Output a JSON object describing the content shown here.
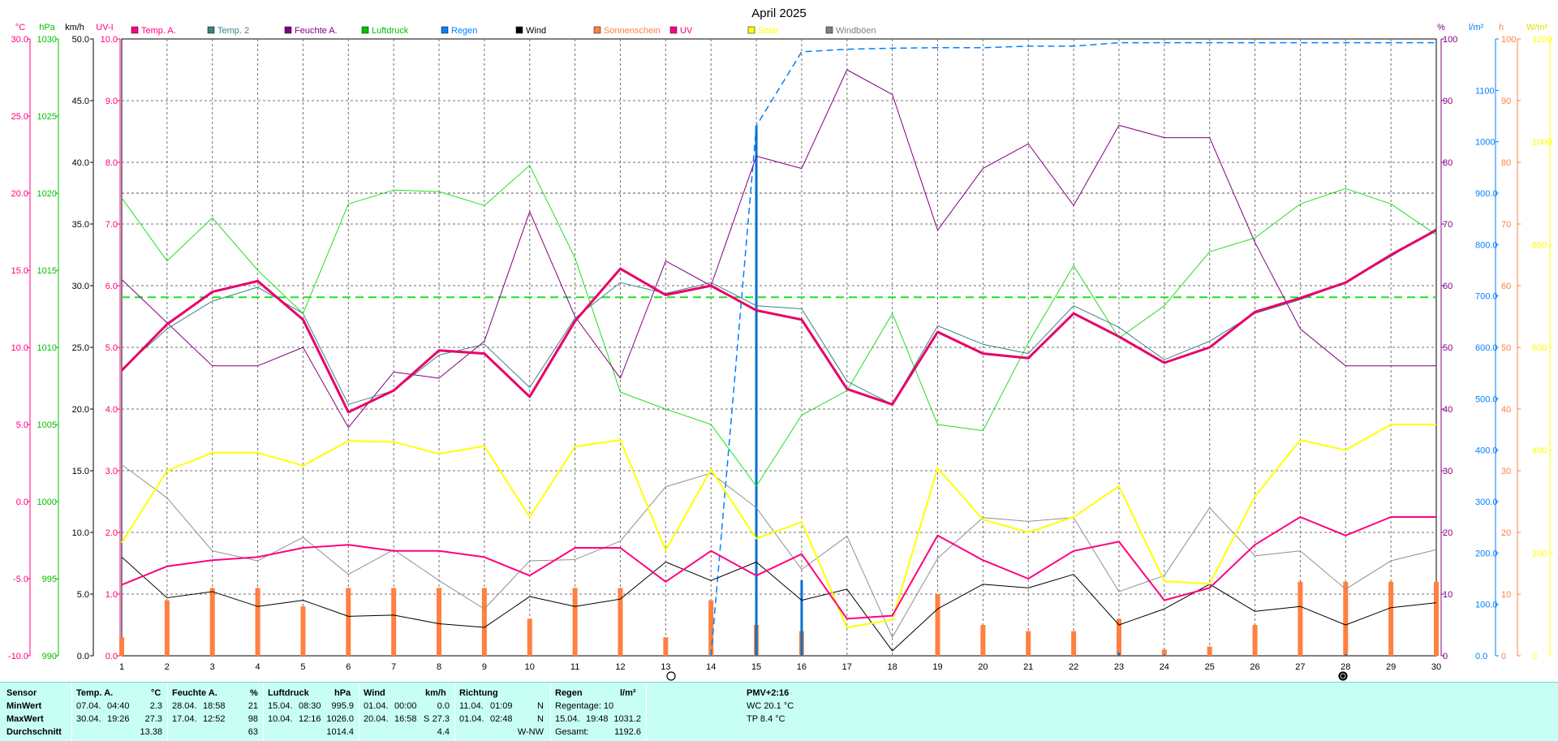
{
  "chart_data": {
    "type": "line",
    "title": "April 2025",
    "x": [
      1,
      2,
      3,
      4,
      5,
      6,
      7,
      8,
      9,
      10,
      11,
      12,
      13,
      14,
      15,
      16,
      17,
      18,
      19,
      20,
      21,
      22,
      23,
      24,
      25,
      26,
      27,
      28,
      29,
      30
    ],
    "axes": {
      "temp": {
        "unit": "°C",
        "color": "#ff0080",
        "range": [
          -10,
          30
        ],
        "ticks": [
          "30.0",
          "25.0",
          "20.0",
          "15.0",
          "10.0",
          "5.0",
          "0.0",
          "-5.0",
          "-10.0"
        ]
      },
      "press": {
        "unit": "hPa",
        "color": "#00c000",
        "range": [
          990,
          1030
        ],
        "ticks": [
          "1030",
          "1025",
          "1020",
          "1015",
          "1010",
          "1005",
          "1000",
          "995",
          "990"
        ]
      },
      "wind": {
        "unit": "km/h",
        "color": "#000000",
        "range": [
          0,
          50
        ],
        "ticks": [
          "50.0",
          "45.0",
          "40.0",
          "35.0",
          "30.0",
          "25.0",
          "20.0",
          "15.0",
          "10.0",
          "5.0",
          "0.0"
        ]
      },
      "uv": {
        "unit": "UV-I",
        "color": "#ff0080",
        "range": [
          0,
          10
        ],
        "ticks": [
          "10.0",
          "9.0",
          "8.0",
          "7.0",
          "6.0",
          "5.0",
          "4.0",
          "3.0",
          "2.0",
          "1.0",
          "0.0"
        ]
      },
      "hum": {
        "unit": "%",
        "color": "#800080",
        "range": [
          0,
          100
        ],
        "ticks": [
          "100",
          "90",
          "80",
          "70",
          "60",
          "50",
          "40",
          "30",
          "20",
          "10",
          "0"
        ]
      },
      "rain": {
        "unit": "l/m²",
        "color": "#0080ff",
        "range": [
          0,
          1200
        ],
        "ticks": [
          "",
          "1100",
          "1000",
          "900.0",
          "800.0",
          "700.0",
          "600.0",
          "500.0",
          "400.0",
          "300.0",
          "200.0",
          "100.0",
          "0.0"
        ]
      },
      "sun": {
        "unit": "h",
        "color": "#ff8040",
        "range": [
          0,
          100
        ],
        "ticks": [
          "100",
          "90",
          "80",
          "70",
          "60",
          "50",
          "40",
          "30",
          "20",
          "10",
          "0"
        ]
      },
      "solar": {
        "unit": "W/m²",
        "color": "#ffff00",
        "range": [
          0,
          1200
        ],
        "ticks": [
          "1200",
          "1000",
          "800",
          "600",
          "400",
          "200",
          "0"
        ]
      }
    },
    "legend": [
      "Temp. A.",
      "Temp. 2",
      "Feuchte A.",
      "Luftdruck",
      "Regen",
      "Wind",
      "Sonnenschein",
      "UV",
      "Solar",
      "Windböen"
    ],
    "legend_colors": [
      "#ff0080",
      "#408080",
      "#800080",
      "#00c000",
      "#0080ff",
      "#000000",
      "#ff8040",
      "#ff0080",
      "#ffff00",
      "#808080"
    ],
    "series": [
      {
        "name": "Temp. A.",
        "axis": "temp",
        "color": "#e8006a",
        "width": 3,
        "values": [
          8.5,
          11.5,
          13.6,
          14.3,
          11.8,
          5.8,
          7.2,
          9.8,
          9.6,
          6.8,
          11.7,
          15.1,
          13.4,
          14.0,
          12.4,
          11.8,
          7.3,
          6.3,
          11.0,
          9.6,
          9.3,
          12.2,
          10.7,
          9.0,
          10.0,
          12.3,
          13.2,
          14.2,
          16.0,
          17.6
        ]
      },
      {
        "name": "Temp. 2",
        "axis": "temp",
        "color": "#408080",
        "width": 1,
        "values": [
          8.6,
          11.2,
          13.0,
          13.9,
          12.2,
          6.3,
          7.2,
          9.5,
          10.2,
          7.4,
          11.9,
          14.2,
          13.5,
          14.2,
          12.7,
          12.5,
          7.8,
          6.3,
          11.4,
          10.2,
          9.6,
          12.7,
          11.3,
          9.2,
          10.4,
          12.2,
          13.1,
          14.2,
          15.9,
          17.7
        ]
      },
      {
        "name": "Feuchte A.",
        "axis": "hum",
        "color": "#800080",
        "width": 1,
        "values": [
          61,
          54,
          47,
          47,
          50,
          37,
          46,
          45,
          51,
          72,
          55,
          45,
          64,
          60,
          81,
          79,
          95,
          91,
          69,
          79,
          83,
          73,
          86,
          84,
          84,
          67,
          53,
          47,
          47,
          47
        ]
      },
      {
        "name": "Luftdruck",
        "axis": "press",
        "color": "#20e020",
        "width": 1,
        "values": [
          1019.7,
          1015.6,
          1018.4,
          1015.0,
          1012.2,
          1019.3,
          1020.2,
          1020.1,
          1019.2,
          1021.8,
          1015.8,
          1007.1,
          1006.0,
          1005.0,
          1001.0,
          1005.6,
          1007.2,
          1012.2,
          1005.0,
          1004.6,
          1010.3,
          1015.3,
          1010.6,
          1012.7,
          1016.2,
          1017.1,
          1019.3,
          1020.3,
          1019.3,
          1017.3
        ]
      },
      {
        "name": "Solar",
        "axis": "solar",
        "color": "#ffff00",
        "width": 2,
        "values": [
          220,
          360,
          395,
          395,
          370,
          418,
          416,
          393,
          408,
          270,
          407,
          420,
          205,
          362,
          228,
          260,
          55,
          70,
          365,
          265,
          240,
          270,
          330,
          145,
          140,
          310,
          420,
          400,
          450,
          450
        ]
      },
      {
        "name": "UV",
        "axis": "uv",
        "color": "#ff0080",
        "width": 2,
        "values": [
          1.15,
          1.45,
          1.55,
          1.6,
          1.75,
          1.8,
          1.7,
          1.7,
          1.6,
          1.3,
          1.75,
          1.75,
          1.2,
          1.7,
          1.3,
          1.65,
          0.6,
          0.65,
          1.95,
          1.55,
          1.25,
          1.7,
          1.85,
          0.9,
          1.1,
          1.8,
          2.25,
          1.95,
          2.25,
          2.25
        ]
      },
      {
        "name": "Windböen",
        "axis": "wind",
        "color": "#909090",
        "width": 1,
        "values": [
          15.5,
          12.8,
          8.5,
          7.7,
          9.6,
          6.6,
          8.6,
          6.1,
          3.8,
          7.7,
          7.8,
          9.3,
          13.7,
          14.8,
          12.0,
          7.0,
          9.7,
          1.5,
          7.9,
          11.2,
          10.9,
          11.2,
          5.2,
          6.5,
          12.0,
          8.1,
          8.5,
          5.4,
          7.7,
          8.6
        ]
      },
      {
        "name": "Wind",
        "axis": "wind",
        "color": "#000000",
        "width": 1,
        "values": [
          8.0,
          4.7,
          5.2,
          4.0,
          4.5,
          3.2,
          3.3,
          2.6,
          2.3,
          4.8,
          4.0,
          4.6,
          7.6,
          6.1,
          7.6,
          4.5,
          5.4,
          0.4,
          3.8,
          5.8,
          5.5,
          6.6,
          2.5,
          3.8,
          5.8,
          3.6,
          4.0,
          2.5,
          3.9,
          4.3
        ]
      }
    ],
    "rain_cumulative": {
      "name": "Regen",
      "axis": "rain",
      "color": "#0080ff",
      "x": [
        14,
        15,
        16,
        17,
        18,
        19,
        20,
        21,
        22,
        23,
        30
      ],
      "values": [
        0,
        1031,
        1175,
        1180,
        1182,
        1183,
        1183,
        1186,
        1186,
        1192.6,
        1192.6
      ]
    },
    "rain_daily": {
      "axis": "rain",
      "color": "#0070d0",
      "x": [
        15,
        16,
        23,
        24,
        28
      ],
      "values": [
        1031.2,
        147,
        6,
        2,
        3
      ]
    },
    "sunshine_bars": {
      "name": "Sonnenschein",
      "axis": "sun",
      "color": "#ff8040",
      "values": [
        3,
        9,
        11,
        11,
        8,
        11,
        11,
        11,
        11,
        6,
        11,
        11,
        3,
        9,
        5,
        4,
        0,
        0,
        10,
        5,
        4,
        4,
        6,
        1,
        1.5,
        5,
        12,
        12,
        12,
        12
      ]
    },
    "reference_line": {
      "axis": "press",
      "value": 1013.25,
      "color": "#20e020",
      "style": "dashed"
    },
    "grid": true
  },
  "stats": {
    "headers": {
      "sensor": "Sensor",
      "temp": "Temp. A.",
      "temp_unit": "°C",
      "hum": "Feuchte A.",
      "hum_unit": "%",
      "press": "Luftdruck",
      "press_unit": "hPa",
      "wind": "Wind",
      "wind_unit": "km/h",
      "dir": "Richtung",
      "rain": "Regen",
      "rain_unit": "l/m²"
    },
    "row_labels": {
      "min": "MinWert",
      "max": "MaxWert",
      "avg": "Durchschnitt"
    },
    "temp": {
      "min_date": "07.04.",
      "min_time": "04:40",
      "min": "2.3",
      "max_date": "30.04.",
      "max_time": "19:26",
      "max": "27.3",
      "avg": "13.38"
    },
    "hum": {
      "min_date": "28.04.",
      "min_time": "18:58",
      "min": "21",
      "max_date": "17.04.",
      "max_time": "12:52",
      "max": "98",
      "avg": "63"
    },
    "press": {
      "min_date": "15.04.",
      "min_time": "08:30",
      "min": "995.9",
      "max_date": "10.04.",
      "max_time": "12:16",
      "max": "1026.0",
      "avg": "1014.4"
    },
    "wind": {
      "min_date": "01.04.",
      "min_time": "00:00",
      "min": "0.0",
      "max_date": "20.04.",
      "max_time": "16:58",
      "max_dir": "S",
      "max": "27.3",
      "avg": "4.4"
    },
    "dir": {
      "min_date": "11.04.",
      "min_time": "01:09",
      "min": "N",
      "max_date": "01.04.",
      "max_time": "02:48",
      "max": "N",
      "avg": "W-NW"
    },
    "rain": {
      "days_label": "Regentage: 10",
      "max_date": "15.04.",
      "max_time": "19:48",
      "max": "1031.2",
      "total_label": "Gesamt:",
      "total": "1192.6"
    },
    "pmv": {
      "title": "PMV+2:16",
      "wc": "WC 20.1 °C",
      "tp": "TP 8.4 °C"
    }
  }
}
